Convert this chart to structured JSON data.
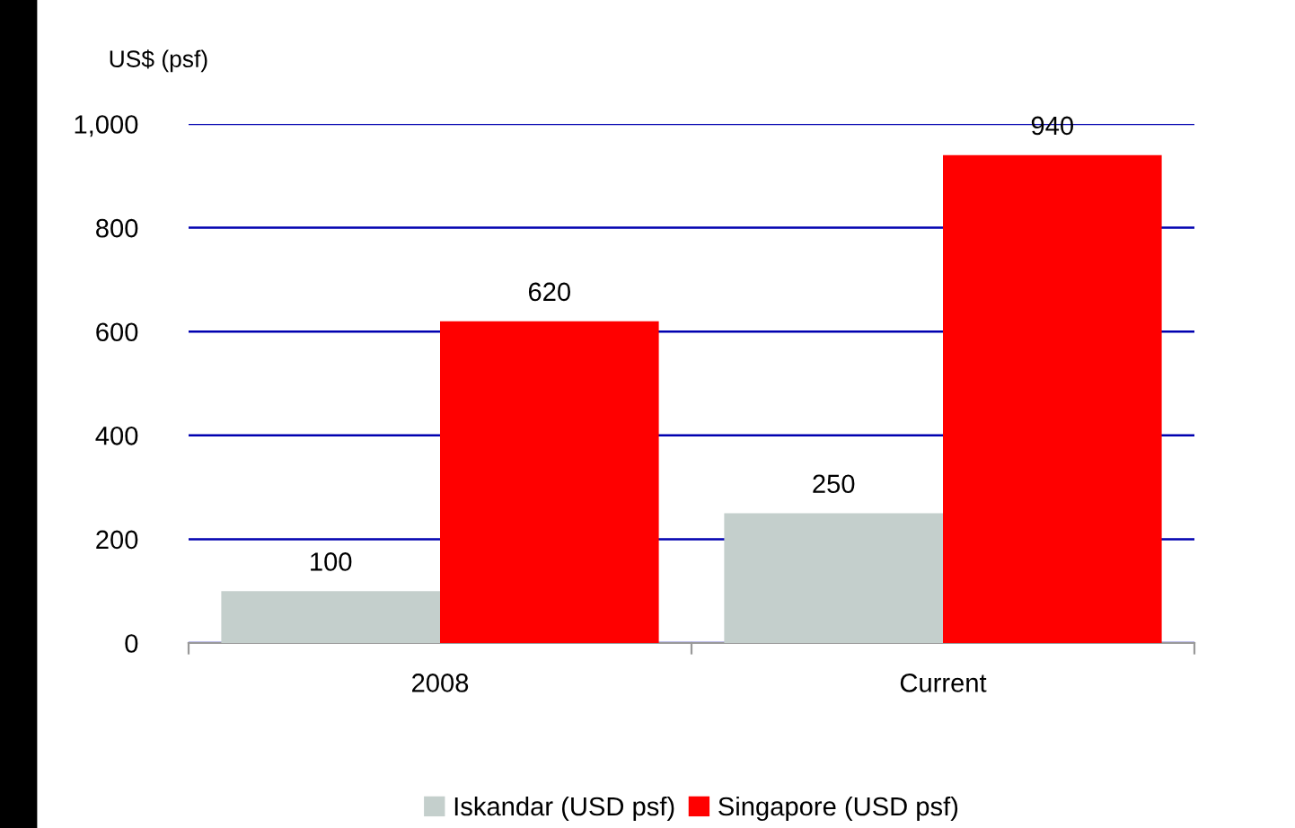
{
  "chart_data": {
    "type": "bar",
    "ylabel": "US$ (psf)",
    "categories": [
      "2008",
      "Current"
    ],
    "series": [
      {
        "name": "Iskandar (USD psf)",
        "color": "#c4cfcc",
        "values": [
          100,
          250
        ]
      },
      {
        "name": "Singapore (USD psf)",
        "color": "#ff0000",
        "values": [
          620,
          940
        ]
      }
    ],
    "ylim": [
      0,
      1000
    ],
    "yticks": [
      0,
      200,
      400,
      600,
      800,
      {
        "value": 1000,
        "label": "1,000"
      }
    ],
    "grid": "y",
    "data_labels": true,
    "legend": "bottom"
  }
}
